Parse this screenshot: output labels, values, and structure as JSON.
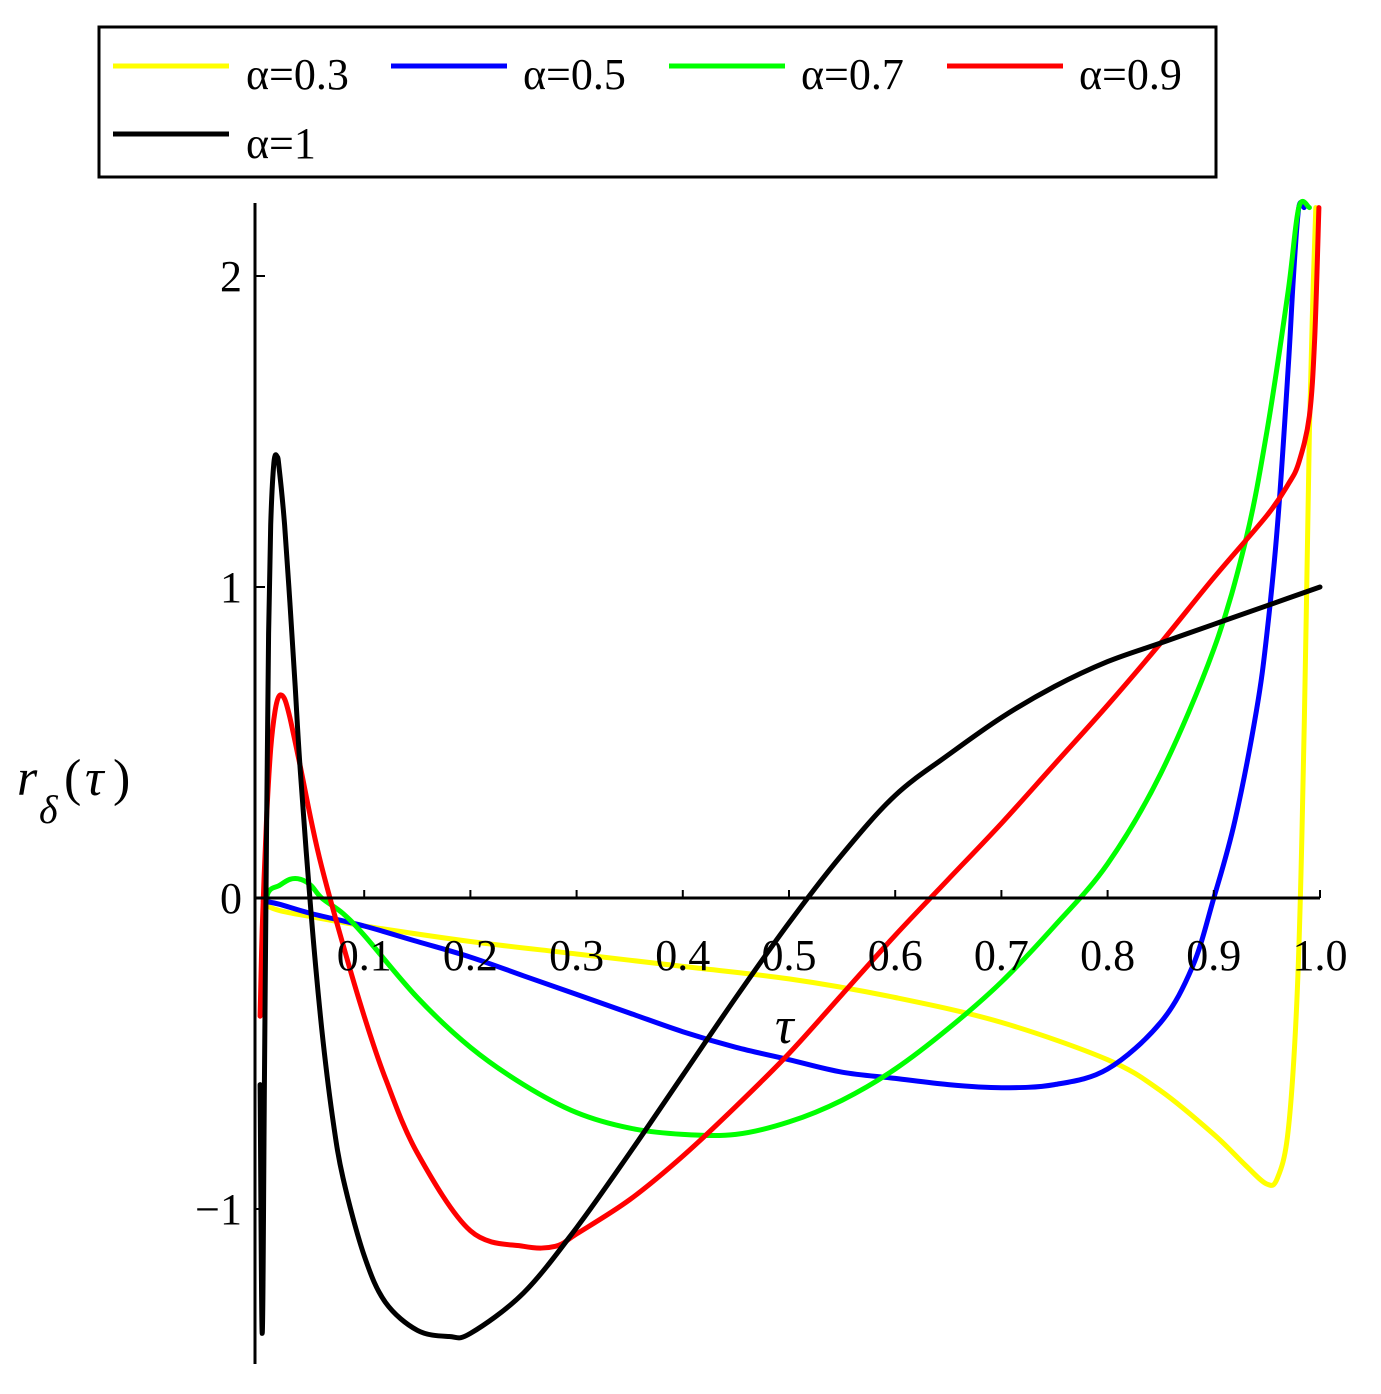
{
  "chart_data": {
    "type": "line",
    "xlabel": "τ",
    "ylabel": {
      "main": "r",
      "subscript": "δ",
      "argument": "τ"
    },
    "xlim": [
      0,
      1.0
    ],
    "ylim": [
      -1.42,
      2.22
    ],
    "x_ticks": [
      {
        "value": 0.1,
        "label": "0.1"
      },
      {
        "value": 0.2,
        "label": "0.2"
      },
      {
        "value": 0.3,
        "label": "0.3"
      },
      {
        "value": 0.4,
        "label": "0.4"
      },
      {
        "value": 0.5,
        "label": "0.5"
      },
      {
        "value": 0.6,
        "label": "0.6"
      },
      {
        "value": 0.7,
        "label": "0.7"
      },
      {
        "value": 0.8,
        "label": "0.8"
      },
      {
        "value": 0.9,
        "label": "0.9"
      },
      {
        "value": 1.0,
        "label": "1.0"
      }
    ],
    "y_ticks": [
      {
        "value": -1,
        "label": "−1"
      },
      {
        "value": 0,
        "label": "0"
      },
      {
        "value": 1,
        "label": "1"
      },
      {
        "value": 2,
        "label": "2"
      }
    ],
    "grid": false,
    "legend_position": "top",
    "series": [
      {
        "name": "α=0.3",
        "color": "#ffff00",
        "x": [
          0.005,
          0.02,
          0.05,
          0.1,
          0.2,
          0.3,
          0.4,
          0.5,
          0.6,
          0.7,
          0.8,
          0.85,
          0.9,
          0.93,
          0.95,
          0.96,
          0.97,
          0.978,
          0.983,
          0.987,
          0.99,
          0.993,
          0.996
        ],
        "y": [
          -0.02,
          -0.04,
          -0.06,
          -0.09,
          -0.14,
          -0.18,
          -0.22,
          -0.26,
          -0.32,
          -0.4,
          -0.52,
          -0.62,
          -0.76,
          -0.86,
          -0.92,
          -0.9,
          -0.75,
          -0.35,
          0.2,
          0.9,
          1.5,
          1.9,
          2.22
        ]
      },
      {
        "name": "α=0.5",
        "color": "#0000ff",
        "x": [
          0.005,
          0.02,
          0.05,
          0.1,
          0.15,
          0.2,
          0.25,
          0.3,
          0.35,
          0.4,
          0.45,
          0.5,
          0.55,
          0.6,
          0.65,
          0.7,
          0.75,
          0.8,
          0.85,
          0.88,
          0.9,
          0.92,
          0.94,
          0.95,
          0.96,
          0.97,
          0.975,
          0.98,
          0.985
        ],
        "y": [
          -0.01,
          -0.02,
          -0.05,
          -0.09,
          -0.14,
          -0.19,
          -0.25,
          -0.31,
          -0.37,
          -0.43,
          -0.48,
          -0.52,
          -0.56,
          -0.58,
          -0.6,
          -0.61,
          -0.6,
          -0.55,
          -0.4,
          -0.22,
          0.0,
          0.25,
          0.6,
          0.85,
          1.2,
          1.7,
          2.0,
          2.22,
          2.22
        ]
      },
      {
        "name": "α=0.7",
        "color": "#00ff00",
        "x": [
          0.005,
          0.01,
          0.02,
          0.03,
          0.04,
          0.05,
          0.06,
          0.08,
          0.1,
          0.15,
          0.2,
          0.25,
          0.3,
          0.35,
          0.4,
          0.45,
          0.5,
          0.55,
          0.6,
          0.65,
          0.7,
          0.75,
          0.8,
          0.85,
          0.9,
          0.93,
          0.95,
          0.97,
          0.98,
          0.99
        ],
        "y": [
          -0.05,
          0.02,
          0.04,
          0.06,
          0.06,
          0.04,
          0.0,
          -0.05,
          -0.12,
          -0.32,
          -0.48,
          -0.6,
          -0.69,
          -0.74,
          -0.76,
          -0.76,
          -0.72,
          -0.65,
          -0.55,
          -0.42,
          -0.27,
          -0.09,
          0.11,
          0.4,
          0.8,
          1.15,
          1.5,
          1.95,
          2.22,
          2.22
        ]
      },
      {
        "name": "α=0.9",
        "color": "#ff0000",
        "x": [
          0.002,
          0.004,
          0.008,
          0.012,
          0.016,
          0.02,
          0.025,
          0.03,
          0.04,
          0.05,
          0.06,
          0.08,
          0.1,
          0.12,
          0.15,
          0.2,
          0.25,
          0.28,
          0.3,
          0.35,
          0.4,
          0.45,
          0.5,
          0.55,
          0.6,
          0.65,
          0.7,
          0.75,
          0.8,
          0.85,
          0.9,
          0.95,
          0.97,
          0.98,
          0.99,
          0.995,
          0.999
        ],
        "y": [
          -0.38,
          -0.1,
          0.25,
          0.48,
          0.6,
          0.65,
          0.64,
          0.58,
          0.42,
          0.25,
          0.1,
          -0.15,
          -0.38,
          -0.58,
          -0.82,
          -1.07,
          -1.12,
          -1.12,
          -1.08,
          -0.97,
          -0.83,
          -0.67,
          -0.5,
          -0.31,
          -0.12,
          0.06,
          0.24,
          0.43,
          0.62,
          0.82,
          1.03,
          1.23,
          1.33,
          1.4,
          1.55,
          1.8,
          2.22
        ]
      },
      {
        "name": "α=1",
        "color": "#000000",
        "x": [
          0.002,
          0.004,
          0.006,
          0.008,
          0.01,
          0.012,
          0.015,
          0.018,
          0.02,
          0.025,
          0.03,
          0.035,
          0.04,
          0.05,
          0.06,
          0.07,
          0.08,
          0.1,
          0.12,
          0.15,
          0.18,
          0.2,
          0.25,
          0.3,
          0.35,
          0.4,
          0.45,
          0.5,
          0.55,
          0.6,
          0.65,
          0.7,
          0.75,
          0.8,
          0.85,
          0.9,
          0.95,
          1.0
        ],
        "y": [
          -0.6,
          -1.4,
          -0.6,
          0.2,
          0.85,
          1.2,
          1.4,
          1.42,
          1.38,
          1.2,
          0.95,
          0.68,
          0.4,
          -0.05,
          -0.42,
          -0.7,
          -0.9,
          -1.15,
          -1.3,
          -1.39,
          -1.41,
          -1.4,
          -1.27,
          -1.06,
          -0.82,
          -0.57,
          -0.32,
          -0.08,
          0.14,
          0.33,
          0.46,
          0.58,
          0.68,
          0.76,
          0.82,
          0.88,
          0.94,
          1.0
        ]
      }
    ]
  }
}
